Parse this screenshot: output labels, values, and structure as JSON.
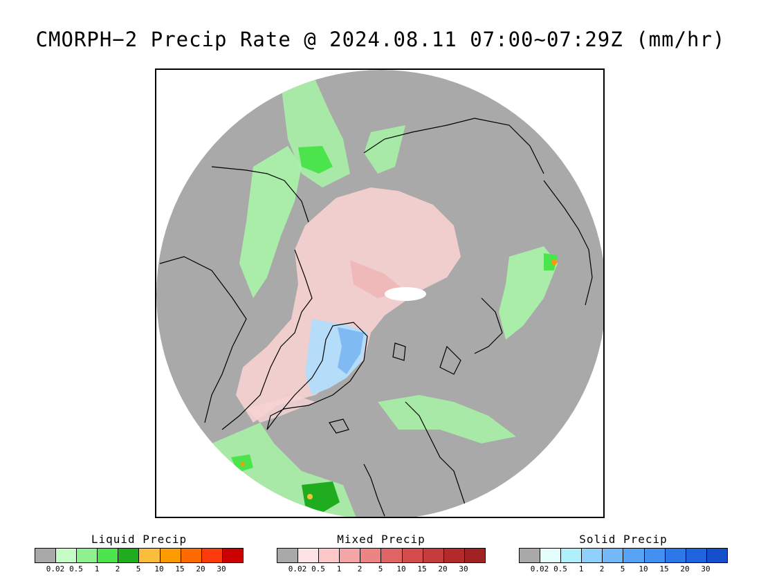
{
  "title": "CMORPH−2 Precip Rate @ 2024.08.11 07:00~07:29Z (mm/hr)",
  "map": {
    "projection": "north-polar-stereographic",
    "background_color": "#a9a9a9",
    "no_data_color": "#ffffff",
    "coastline_color": "#000000"
  },
  "legends": [
    {
      "title": "Liquid Precip",
      "ticks": [
        "0.02",
        "0.5",
        "1",
        "2",
        "5",
        "10",
        "15",
        "20",
        "30"
      ],
      "colors": [
        "#a9a9a9",
        "#c6fcc6",
        "#8ef08e",
        "#4ce44c",
        "#1fad1f",
        "#fbbe3c",
        "#fd9a00",
        "#fd6a00",
        "#fd3a0c",
        "#cc0000"
      ]
    },
    {
      "title": "Mixed Precip",
      "ticks": [
        "0.02",
        "0.5",
        "1",
        "2",
        "5",
        "10",
        "15",
        "20",
        "30"
      ],
      "colors": [
        "#a9a9a9",
        "#fde3e3",
        "#fcc8c8",
        "#f4a4a4",
        "#ec8484",
        "#e06464",
        "#d44c4c",
        "#c63c3c",
        "#b42a2a",
        "#a02222"
      ]
    },
    {
      "title": "Solid Precip",
      "ticks": [
        "0.02",
        "0.5",
        "1",
        "2",
        "5",
        "10",
        "15",
        "20",
        "30"
      ],
      "colors": [
        "#a9a9a9",
        "#e4fefe",
        "#b0f0fc",
        "#90d0fc",
        "#74b8f8",
        "#58a4f4",
        "#4490f0",
        "#2c78e8",
        "#1e64dc",
        "#1450cc"
      ]
    }
  ]
}
